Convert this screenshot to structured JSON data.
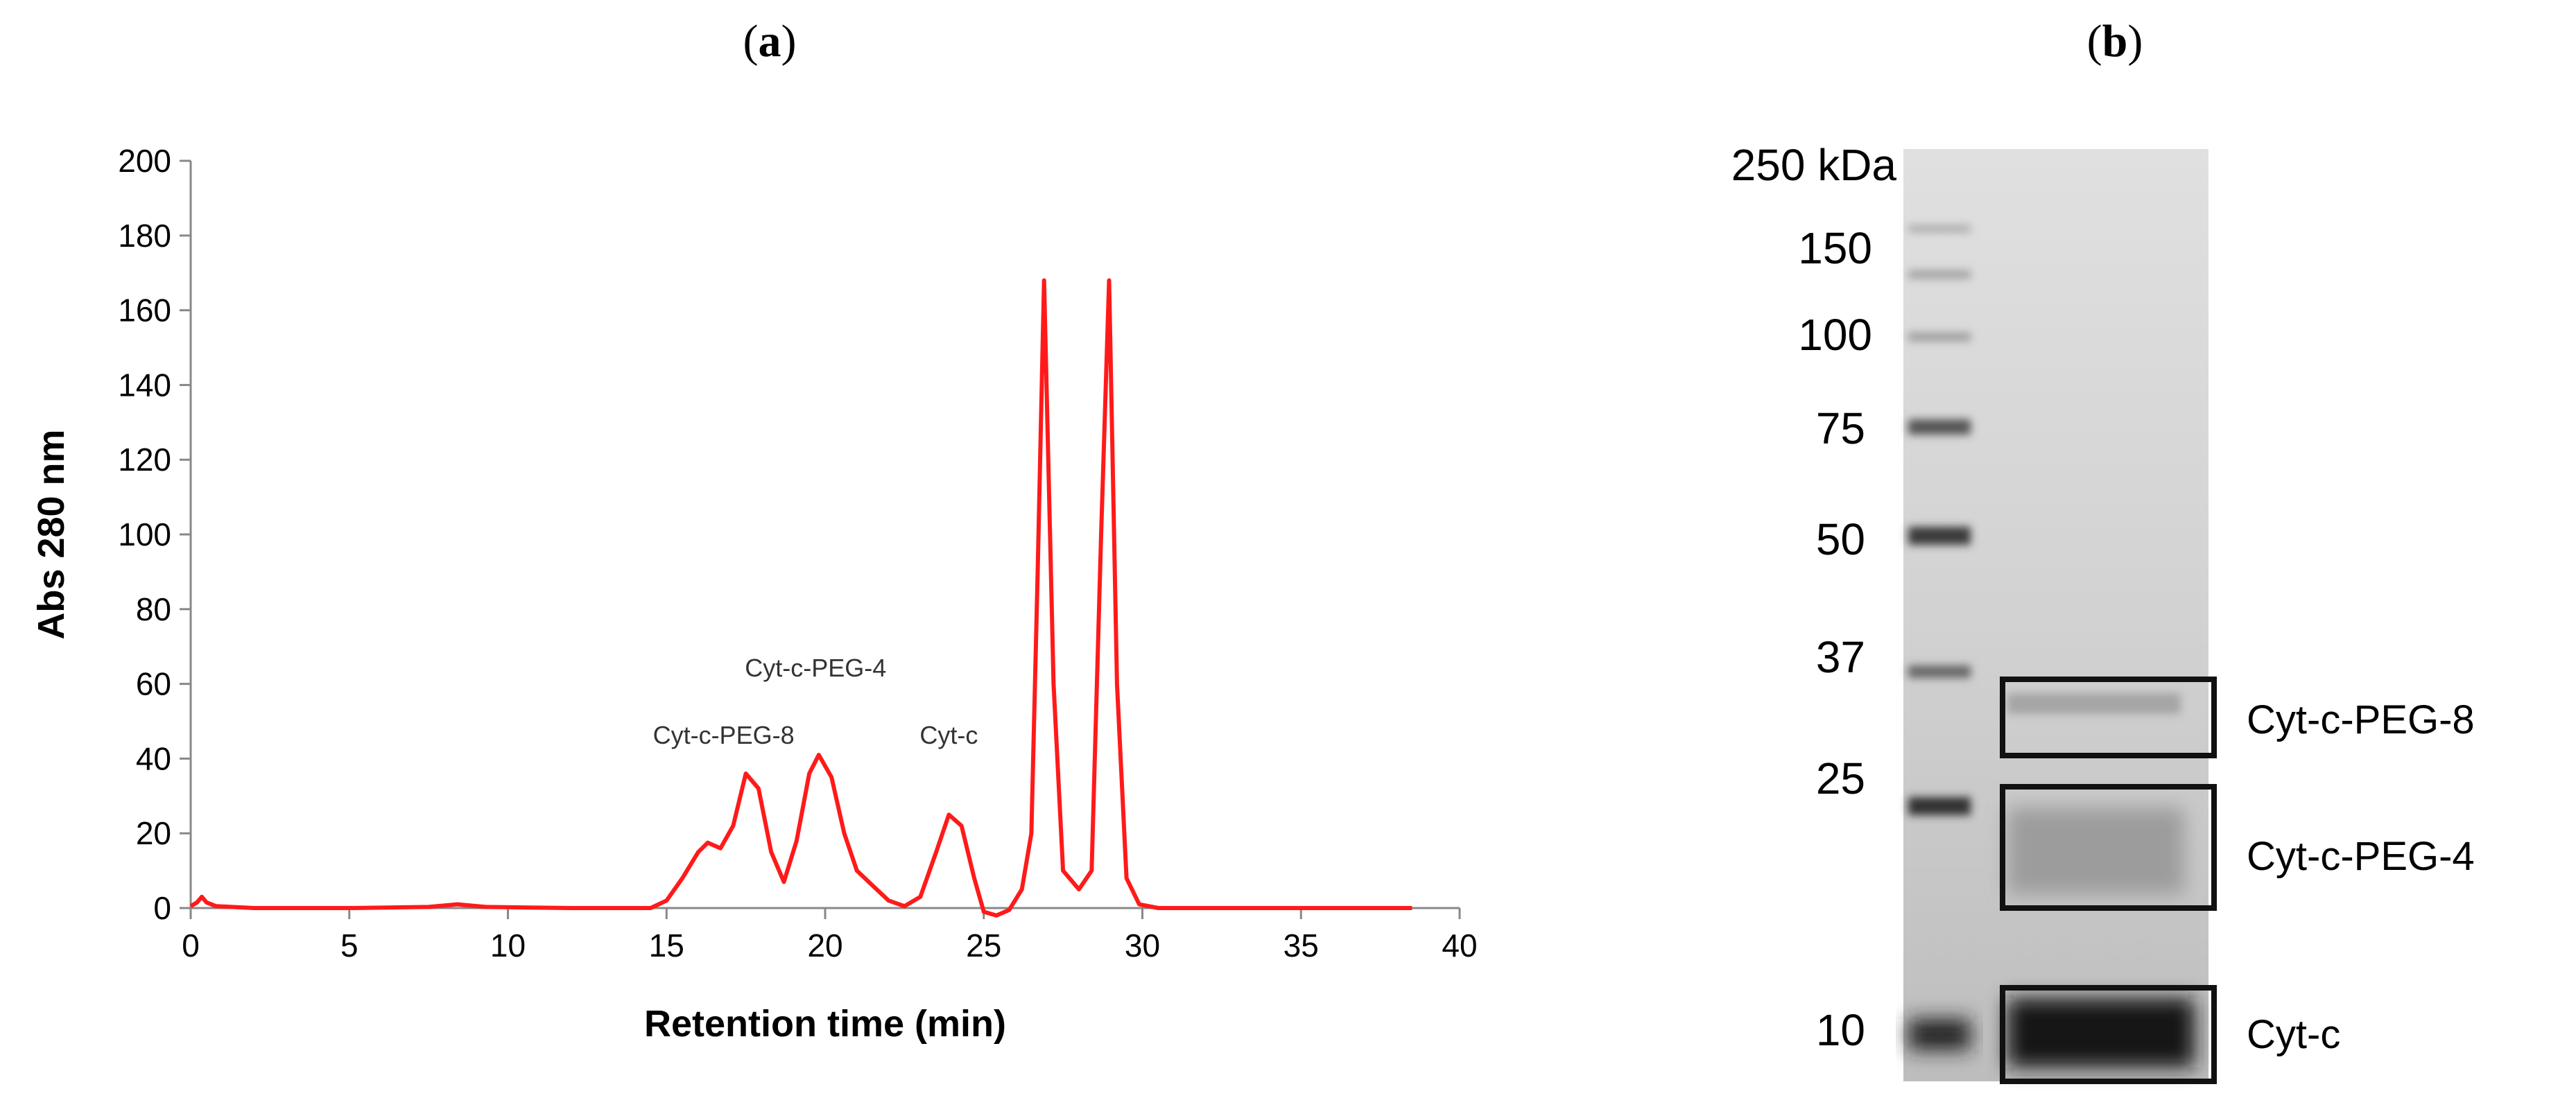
{
  "panels": {
    "a": {
      "open": "(",
      "letter": "a",
      "close": ")"
    },
    "b": {
      "open": "(",
      "letter": "b",
      "close": ")"
    }
  },
  "chart_data": {
    "type": "line",
    "title": "",
    "xlabel": "Retention time (min)",
    "ylabel": "Abs 280 nm",
    "xlim": [
      0,
      40
    ],
    "ylim": [
      0,
      200
    ],
    "xticks": [
      0,
      5,
      10,
      15,
      20,
      25,
      30,
      35,
      40
    ],
    "yticks": [
      0,
      20,
      40,
      60,
      80,
      100,
      120,
      140,
      160,
      180,
      200
    ],
    "grid": false,
    "line_color": "#ff1a1a",
    "series": [
      {
        "name": "Abs 280 nm",
        "x": [
          0,
          0.2,
          0.35,
          0.5,
          0.8,
          2,
          5,
          7.5,
          8.4,
          9.3,
          12,
          14.5,
          15,
          15.5,
          16,
          16.3,
          16.7,
          17.1,
          17.5,
          17.9,
          18.3,
          18.7,
          19.1,
          19.5,
          19.8,
          20.2,
          20.6,
          21,
          21.5,
          22,
          22.5,
          23,
          23.5,
          23.9,
          24.3,
          24.7,
          25,
          25.4,
          25.8,
          26.2,
          26.5,
          26.7,
          26.9,
          27.2,
          27.5,
          28,
          28.4,
          28.7,
          28.95,
          29.2,
          29.5,
          29.9,
          30.5,
          32,
          35,
          38.5
        ],
        "y": [
          0.5,
          1.5,
          3,
          1.5,
          0.5,
          0,
          0,
          0.3,
          1,
          0.3,
          0,
          0,
          2,
          8,
          15,
          17.5,
          16,
          22,
          36,
          32,
          15,
          7,
          18,
          36,
          41,
          35,
          20,
          10,
          6,
          2,
          0.5,
          3,
          15,
          25,
          22,
          8,
          -1,
          -2,
          -0.5,
          5,
          20,
          90,
          168,
          60,
          10,
          5,
          10,
          100,
          168,
          60,
          8,
          1,
          0,
          0,
          0,
          0
        ]
      }
    ],
    "annotations": [
      {
        "text": "Cyt-c-PEG-8",
        "x": 16.8,
        "y": 44
      },
      {
        "text": "Cyt-c-PEG-4",
        "x": 19.7,
        "y": 62
      },
      {
        "text": "Cyt-c",
        "x": 23.9,
        "y": 44
      }
    ]
  },
  "gel": {
    "markers": [
      "250 kDa",
      "150",
      "100",
      "75",
      "50",
      "37",
      "25",
      "10"
    ],
    "bands": [
      "Cyt-c-PEG-8",
      "Cyt-c-PEG-4",
      "Cyt-c"
    ],
    "box_color": "#111111"
  }
}
